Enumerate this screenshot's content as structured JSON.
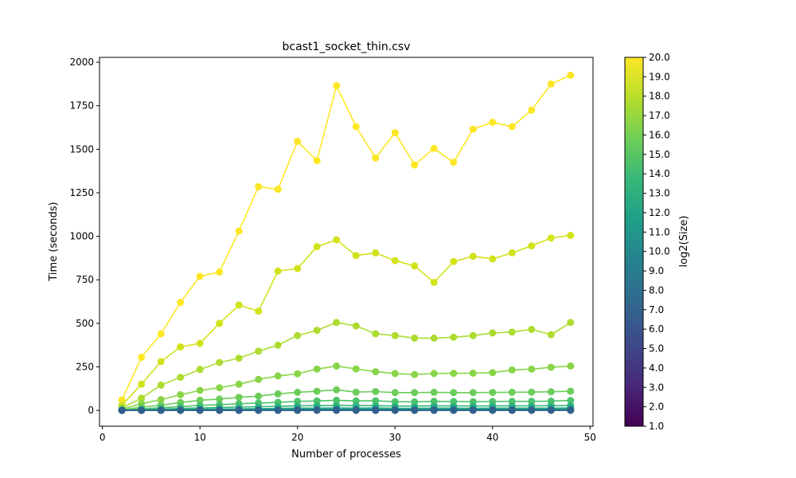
{
  "chart_data": {
    "type": "line",
    "title": "bcast1_socket_thin.csv",
    "xlabel": "Number of processes",
    "ylabel": "Time (seconds)",
    "xlim": [
      -0.3,
      50.3
    ],
    "ylim": [
      -91,
      2028
    ],
    "x_ticks": [
      0,
      10,
      20,
      30,
      40,
      50
    ],
    "y_ticks": [
      0,
      250,
      500,
      750,
      1000,
      1250,
      1500,
      1750,
      2000
    ],
    "grid": false,
    "x": [
      2,
      4,
      6,
      8,
      10,
      12,
      14,
      16,
      18,
      20,
      22,
      24,
      26,
      28,
      30,
      32,
      34,
      36,
      38,
      40,
      42,
      44,
      46,
      48
    ],
    "colorbar": {
      "label": "log2(Size)",
      "min": 1.0,
      "max": 20.0,
      "ticks": [
        "1.0",
        "2.0",
        "3.0",
        "4.0",
        "5.0",
        "6.0",
        "7.0",
        "8.0",
        "9.0",
        "10.0",
        "11.0",
        "12.0",
        "13.0",
        "14.0",
        "15.0",
        "16.0",
        "17.0",
        "18.0",
        "19.0",
        "20.0"
      ],
      "stops": [
        "#440154",
        "#482878",
        "#3e4989",
        "#31688e",
        "#26828e",
        "#1f9e89",
        "#35b779",
        "#6ece58",
        "#b5de2b",
        "#fde725"
      ]
    },
    "series": [
      {
        "log2size": 20,
        "color": "#fde725",
        "values": [
          60,
          305,
          440,
          620,
          770,
          795,
          1030,
          1285,
          1270,
          1545,
          1435,
          1865,
          1630,
          1450,
          1595,
          1410,
          1505,
          1425,
          1615,
          1655,
          1630,
          1725,
          1875,
          1925
        ]
      },
      {
        "log2size": 19,
        "color": "#d2e21b",
        "values": [
          30,
          150,
          280,
          365,
          385,
          500,
          605,
          570,
          800,
          815,
          940,
          980,
          890,
          905,
          860,
          830,
          735,
          855,
          885,
          870,
          905,
          945,
          990,
          1005
        ]
      },
      {
        "log2size": 18,
        "color": "#addc30",
        "values": [
          15,
          70,
          145,
          190,
          235,
          275,
          300,
          340,
          375,
          430,
          460,
          505,
          485,
          440,
          430,
          415,
          415,
          420,
          430,
          445,
          450,
          465,
          435,
          505
        ]
      },
      {
        "log2size": 17,
        "color": "#89d548",
        "values": [
          8,
          38,
          62,
          90,
          115,
          130,
          150,
          178,
          198,
          210,
          237,
          255,
          238,
          222,
          212,
          206,
          212,
          213,
          214,
          217,
          232,
          237,
          247,
          255
        ]
      },
      {
        "log2size": 16,
        "color": "#6ccd5a",
        "values": [
          4,
          18,
          30,
          45,
          58,
          65,
          75,
          82,
          95,
          104,
          110,
          118,
          105,
          108,
          102,
          102,
          104,
          102,
          102,
          103,
          104,
          105,
          107,
          110
        ]
      },
      {
        "log2size": 15,
        "color": "#4ec36b",
        "values": [
          2,
          9,
          15,
          22,
          29,
          33,
          38,
          42,
          46,
          52,
          54,
          58,
          54,
          55,
          50,
          49,
          52,
          51,
          50,
          51,
          52,
          52,
          53,
          57
        ]
      },
      {
        "log2size": 14,
        "color": "#35b779",
        "values": [
          1,
          5,
          8,
          11,
          14,
          17,
          19,
          21,
          23,
          26,
          27,
          29,
          27,
          27,
          25,
          25,
          26,
          26,
          25,
          26,
          26,
          26,
          27,
          28
        ]
      },
      {
        "log2size": 13,
        "color": "#25ab82",
        "values": [
          0.5,
          2,
          4,
          6,
          7,
          8,
          9,
          10,
          11,
          13,
          13,
          14,
          13,
          14,
          12,
          12,
          13,
          13,
          12,
          13,
          13,
          13,
          13,
          14
        ]
      },
      {
        "log2size": 12,
        "color": "#1f9e89",
        "values": [
          0.3,
          1,
          2,
          3,
          3.5,
          4,
          4.5,
          5,
          5.5,
          6.5,
          6.5,
          7,
          6.5,
          7,
          6,
          6,
          6.5,
          6.5,
          6,
          6.5,
          6.5,
          6.5,
          6.5,
          7
        ]
      },
      {
        "log2size": 11,
        "color": "#1f928c",
        "values": [
          0.2,
          0.6,
          1,
          1.5,
          1.8,
          2,
          2.3,
          2.5,
          2.8,
          3.2,
          3.3,
          3.5,
          3.3,
          3.4,
          3,
          3,
          3.2,
          3.2,
          3,
          3.2,
          3.2,
          3.2,
          3.3,
          3.5
        ]
      },
      {
        "log2size": 10,
        "color": "#21858e",
        "values": [
          0.1,
          0.4,
          0.6,
          0.9,
          1,
          1.1,
          1.2,
          1.3,
          1.4,
          1.6,
          1.7,
          1.8,
          1.7,
          1.7,
          1.5,
          1.5,
          1.6,
          1.6,
          1.5,
          1.6,
          1.6,
          1.6,
          1.7,
          1.8
        ]
      },
      {
        "log2size": 9,
        "color": "#25788e",
        "values": [
          0.1,
          0.3,
          0.4,
          0.5,
          0.6,
          0.6,
          0.7,
          0.7,
          0.8,
          0.9,
          0.9,
          1,
          0.9,
          0.9,
          0.8,
          0.8,
          0.9,
          0.9,
          0.8,
          0.9,
          0.9,
          0.9,
          0.9,
          1
        ]
      },
      {
        "log2size": 8,
        "color": "#2a6c8e",
        "values": [
          0.1,
          0.2,
          0.3,
          0.3,
          0.4,
          0.4,
          0.4,
          0.5,
          0.5,
          0.5,
          0.5,
          0.6,
          0.5,
          0.5,
          0.5,
          0.5,
          0.5,
          0.5,
          0.5,
          0.5,
          0.5,
          0.5,
          0.5,
          0.6
        ]
      },
      {
        "log2size": 7,
        "color": "#30608d",
        "values": [
          0.1,
          0.15,
          0.2,
          0.2,
          0.25,
          0.25,
          0.3,
          0.3,
          0.3,
          0.3,
          0.35,
          0.35,
          0.3,
          0.3,
          0.3,
          0.3,
          0.3,
          0.3,
          0.3,
          0.3,
          0.3,
          0.3,
          0.35,
          0.35
        ]
      }
    ]
  }
}
